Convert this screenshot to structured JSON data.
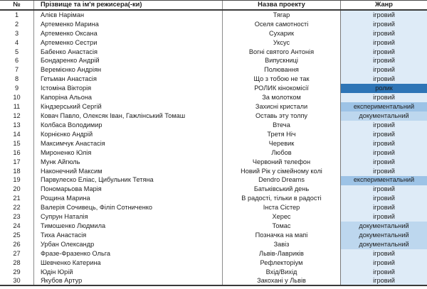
{
  "table": {
    "headers": {
      "number": "№",
      "director": "Прізвище та ім'я режисера(-ки)",
      "project": "Назва проекту",
      "genre": "Жанр"
    },
    "rows": [
      {
        "number": "1",
        "director": "Алієв Наріман",
        "project": "Тягар",
        "genre": "ігровий"
      },
      {
        "number": "2",
        "director": "Артеменко Марина",
        "project": "Оселя самотності",
        "genre": "ігровий"
      },
      {
        "number": "3",
        "director": "Артеменко Оксана",
        "project": "Сухарик",
        "genre": "ігровий"
      },
      {
        "number": "4",
        "director": "Артеменко Сестри",
        "project": "Уксус",
        "genre": "ігровий"
      },
      {
        "number": "5",
        "director": "Бабенко Анастасія",
        "project": "Вогні святого Антонія",
        "genre": "ігровий"
      },
      {
        "number": "6",
        "director": "Бондаренко Андрій",
        "project": "Випускниці",
        "genre": "ігровий"
      },
      {
        "number": "7",
        "director": "Веремієнко Андріян",
        "project": "Полювання",
        "genre": "ігровий"
      },
      {
        "number": "8",
        "director": "Гетьман Анастасія",
        "project": "Що з тобою не так",
        "genre": "ігровий"
      },
      {
        "number": "9",
        "director": "Істоміна Вікторія",
        "project": "РОЛИК кінокомісії",
        "genre": "ролик"
      },
      {
        "number": "10",
        "director": "Капоріна Альона",
        "project": "За молотком",
        "genre": "ігровий"
      },
      {
        "number": "11",
        "director": "Кіндзерський Сергій",
        "project": "Захисні кристали",
        "genre": "експериментальний"
      },
      {
        "number": "12",
        "director": "Ковач Павло, Олексяк Іван, Гажлінський Томаш",
        "project": "Оставь эту толпу",
        "genre": "документальний"
      },
      {
        "number": "13",
        "director": "Колбаса Володимир",
        "project": "Втеча",
        "genre": "ігровий"
      },
      {
        "number": "14",
        "director": "Корнієнко Андрій",
        "project": "Третя Ніч",
        "genre": "ігровий"
      },
      {
        "number": "15",
        "director": "Максимчук Анастасія",
        "project": "Черевик",
        "genre": "ігровий"
      },
      {
        "number": "16",
        "director": "Мироненко Юлія",
        "project": "Любов",
        "genre": "ігровий"
      },
      {
        "number": "17",
        "director": "Мунк Айгюль",
        "project": "Червоний телефон",
        "genre": "ігровий"
      },
      {
        "number": "18",
        "director": "Наконечний Максим",
        "project": "Новий Рік у сімейному колі",
        "genre": "ігровий"
      },
      {
        "number": "19",
        "director": "Парвулеско Еліас, Цибульник Тетяна",
        "project": "Dendro Dreams",
        "genre": "експериментальний"
      },
      {
        "number": "20",
        "director": "Пономарьова Марія",
        "project": "Батьківський день",
        "genre": "ігровий"
      },
      {
        "number": "21",
        "director": "Рощина Марина",
        "project": "В радості, тільки в радості",
        "genre": "ігровий"
      },
      {
        "number": "22",
        "director": "Валерія Сочивець, Філіп Сотниченко",
        "project": "Інста Сістер",
        "genre": "ігровий"
      },
      {
        "number": "23",
        "director": "Супрун Наталія",
        "project": "Херес",
        "genre": "ігровий"
      },
      {
        "number": "24",
        "director": "Тимошенко Людмила",
        "project": "Томас",
        "genre": "документальний"
      },
      {
        "number": "25",
        "director": "Тиха Анастасія",
        "project": "Позначка на мапі",
        "genre": "документальний"
      },
      {
        "number": "26",
        "director": "Урбан Олександр",
        "project": "Завіз",
        "genre": "документальний"
      },
      {
        "number": "27",
        "director": "Фразе-Фразенко Ольга",
        "project": "Львів-Лавриків",
        "genre": "ігровий"
      },
      {
        "number": "28",
        "director": "Шевченко Катерина",
        "project": "Рефлекторіум",
        "genre": "ігровий"
      },
      {
        "number": "29",
        "director": "Юдін Юрій",
        "project": "Вхід/Вихід",
        "genre": "ігровий"
      },
      {
        "number": "30",
        "director": "Якубов Артур",
        "project": "Закохані у Львів",
        "genre": "ігровий"
      }
    ]
  },
  "genre_colors": {
    "ігровий": "#DEEBF7",
    "ролик": "#2E75B6",
    "експериментальний": "#9DC3E6",
    "документальний": "#BDD7EE"
  }
}
